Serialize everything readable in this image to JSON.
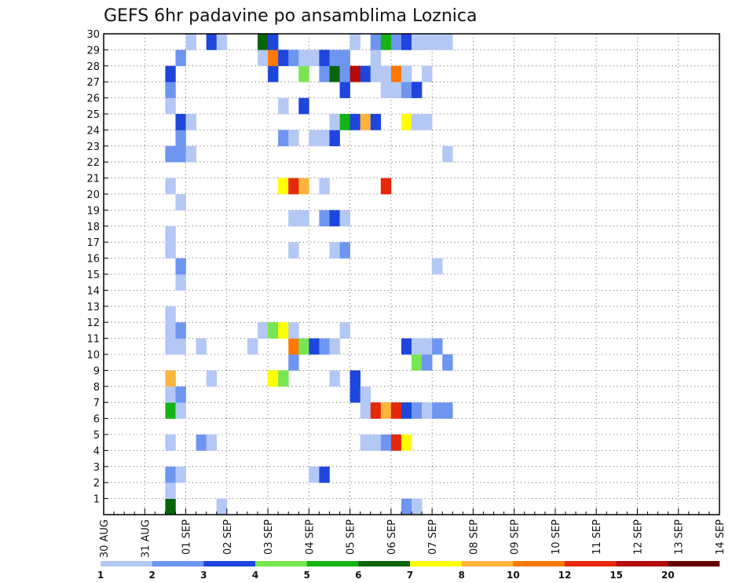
{
  "chart_data": {
    "type": "heatmap",
    "title": "GEFS 6hr padavine po ansamblima Loznica",
    "y_ticks": [
      "1",
      "2",
      "3",
      "4",
      "5",
      "6",
      "7",
      "8",
      "9",
      "10",
      "11",
      "12",
      "13",
      "14",
      "15",
      "16",
      "17",
      "18",
      "19",
      "20",
      "21",
      "22",
      "23",
      "24",
      "25",
      "26",
      "27",
      "28",
      "29",
      "30"
    ],
    "ylim": [
      0,
      30
    ],
    "x_ticks": [
      "30 AUG",
      "31 AUG",
      "01 SEP",
      "02 SEP",
      "03 SEP",
      "04 SEP",
      "05 SEP",
      "06 SEP",
      "07 SEP",
      "08 SEP",
      "09 SEP",
      "10 SEP",
      "11 SEP",
      "12 SEP",
      "13 SEP",
      "14 SEP"
    ],
    "x_steps_per_day": 4,
    "grid": true,
    "colorbar": {
      "colors": [
        "#b4c8f5",
        "#6e96f0",
        "#1e46dc",
        "#78e650",
        "#14b414",
        "#0a640a",
        "#ffff00",
        "#ffb43c",
        "#ff7800",
        "#e6280a",
        "#b40a0a",
        "#640000"
      ],
      "labels": [
        "1",
        "2",
        "3",
        "4",
        "5",
        "6",
        "7",
        "8",
        "10",
        "12",
        "15",
        "20"
      ]
    },
    "cells": [
      [
        6,
        0,
        "#0a640a"
      ],
      [
        11,
        0,
        "#b4c8f5"
      ],
      [
        29,
        0,
        "#6e96f0"
      ],
      [
        30,
        0,
        "#b4c8f5"
      ],
      [
        6,
        1,
        "#b4c8f5"
      ],
      [
        6,
        2,
        "#6e96f0"
      ],
      [
        7,
        2,
        "#b4c8f5"
      ],
      [
        20,
        2,
        "#b4c8f5"
      ],
      [
        21,
        2,
        "#1e46dc"
      ],
      [
        6,
        4,
        "#b4c8f5"
      ],
      [
        9,
        4,
        "#6e96f0"
      ],
      [
        10,
        4,
        "#b4c8f5"
      ],
      [
        25,
        4,
        "#b4c8f5"
      ],
      [
        26,
        4,
        "#b4c8f5"
      ],
      [
        27,
        4,
        "#6e96f0"
      ],
      [
        28,
        4,
        "#e6280a"
      ],
      [
        29,
        4,
        "#ffff00"
      ],
      [
        6,
        6,
        "#14b414"
      ],
      [
        7,
        6,
        "#b4c8f5"
      ],
      [
        25,
        6,
        "#b4c8f5"
      ],
      [
        26,
        6,
        "#e6280a"
      ],
      [
        27,
        6,
        "#ffb43c"
      ],
      [
        28,
        6,
        "#e6280a"
      ],
      [
        29,
        6,
        "#1e46dc"
      ],
      [
        30,
        6,
        "#6e96f0"
      ],
      [
        31,
        6,
        "#b4c8f5"
      ],
      [
        32,
        6,
        "#6e96f0"
      ],
      [
        33,
        6,
        "#6e96f0"
      ],
      [
        6,
        7,
        "#b4c8f5"
      ],
      [
        7,
        7,
        "#6e96f0"
      ],
      [
        24,
        7,
        "#1e46dc"
      ],
      [
        25,
        7,
        "#b4c8f5"
      ],
      [
        6,
        8,
        "#ffb43c"
      ],
      [
        10,
        8,
        "#b4c8f5"
      ],
      [
        16,
        8,
        "#ffff00"
      ],
      [
        17,
        8,
        "#78e650"
      ],
      [
        22,
        8,
        "#b4c8f5"
      ],
      [
        24,
        8,
        "#1e46dc"
      ],
      [
        18,
        9,
        "#6e96f0"
      ],
      [
        30,
        9,
        "#78e650"
      ],
      [
        31,
        9,
        "#6e96f0"
      ],
      [
        33,
        9,
        "#6e96f0"
      ],
      [
        6,
        10,
        "#b4c8f5"
      ],
      [
        7,
        10,
        "#b4c8f5"
      ],
      [
        9,
        10,
        "#b4c8f5"
      ],
      [
        14,
        10,
        "#b4c8f5"
      ],
      [
        18,
        10,
        "#ff7800"
      ],
      [
        19,
        10,
        "#78e650"
      ],
      [
        20,
        10,
        "#1e46dc"
      ],
      [
        21,
        10,
        "#6e96f0"
      ],
      [
        22,
        10,
        "#b4c8f5"
      ],
      [
        29,
        10,
        "#1e46dc"
      ],
      [
        30,
        10,
        "#b4c8f5"
      ],
      [
        31,
        10,
        "#b4c8f5"
      ],
      [
        32,
        10,
        "#6e96f0"
      ],
      [
        6,
        11,
        "#b4c8f5"
      ],
      [
        7,
        11,
        "#6e96f0"
      ],
      [
        15,
        11,
        "#b4c8f5"
      ],
      [
        16,
        11,
        "#78e650"
      ],
      [
        17,
        11,
        "#ffff00"
      ],
      [
        18,
        11,
        "#b4c8f5"
      ],
      [
        23,
        11,
        "#b4c8f5"
      ],
      [
        6,
        12,
        "#b4c8f5"
      ],
      [
        7,
        14,
        "#b4c8f5"
      ],
      [
        7,
        15,
        "#6e96f0"
      ],
      [
        32,
        15,
        "#b4c8f5"
      ],
      [
        6,
        16,
        "#b4c8f5"
      ],
      [
        18,
        16,
        "#b4c8f5"
      ],
      [
        22,
        16,
        "#b4c8f5"
      ],
      [
        23,
        16,
        "#6e96f0"
      ],
      [
        6,
        17,
        "#b4c8f5"
      ],
      [
        18,
        18,
        "#b4c8f5"
      ],
      [
        19,
        18,
        "#b4c8f5"
      ],
      [
        21,
        18,
        "#6e96f0"
      ],
      [
        22,
        18,
        "#1e46dc"
      ],
      [
        23,
        18,
        "#b4c8f5"
      ],
      [
        7,
        19,
        "#b4c8f5"
      ],
      [
        6,
        20,
        "#b4c8f5"
      ],
      [
        17,
        20,
        "#ffff00"
      ],
      [
        18,
        20,
        "#e6280a"
      ],
      [
        19,
        20,
        "#ffb43c"
      ],
      [
        21,
        20,
        "#b4c8f5"
      ],
      [
        27,
        20,
        "#e6280a"
      ],
      [
        6,
        22,
        "#6e96f0"
      ],
      [
        7,
        22,
        "#6e96f0"
      ],
      [
        8,
        22,
        "#b4c8f5"
      ],
      [
        33,
        22,
        "#b4c8f5"
      ],
      [
        7,
        23,
        "#6e96f0"
      ],
      [
        17,
        23,
        "#6e96f0"
      ],
      [
        18,
        23,
        "#b4c8f5"
      ],
      [
        20,
        23,
        "#b4c8f5"
      ],
      [
        21,
        23,
        "#b4c8f5"
      ],
      [
        22,
        23,
        "#1e46dc"
      ],
      [
        7,
        24,
        "#1e46dc"
      ],
      [
        8,
        24,
        "#b4c8f5"
      ],
      [
        22,
        24,
        "#b4c8f5"
      ],
      [
        23,
        24,
        "#14b414"
      ],
      [
        24,
        24,
        "#1e46dc"
      ],
      [
        25,
        24,
        "#ffb43c"
      ],
      [
        26,
        24,
        "#1e46dc"
      ],
      [
        29,
        24,
        "#ffff00"
      ],
      [
        30,
        24,
        "#b4c8f5"
      ],
      [
        31,
        24,
        "#b4c8f5"
      ],
      [
        6,
        25,
        "#b4c8f5"
      ],
      [
        17,
        25,
        "#b4c8f5"
      ],
      [
        19,
        25,
        "#1e46dc"
      ],
      [
        6,
        26,
        "#6e96f0"
      ],
      [
        23,
        26,
        "#1e46dc"
      ],
      [
        27,
        26,
        "#b4c8f5"
      ],
      [
        28,
        26,
        "#b4c8f5"
      ],
      [
        29,
        26,
        "#6e96f0"
      ],
      [
        30,
        26,
        "#1e46dc"
      ],
      [
        6,
        27,
        "#1e46dc"
      ],
      [
        16,
        27,
        "#1e46dc"
      ],
      [
        19,
        27,
        "#78e650"
      ],
      [
        21,
        27,
        "#6e96f0"
      ],
      [
        22,
        27,
        "#0a640a"
      ],
      [
        23,
        27,
        "#6e96f0"
      ],
      [
        24,
        27,
        "#b40a0a"
      ],
      [
        25,
        27,
        "#1e46dc"
      ],
      [
        26,
        27,
        "#b4c8f5"
      ],
      [
        27,
        27,
        "#b4c8f5"
      ],
      [
        28,
        27,
        "#ff7800"
      ],
      [
        29,
        27,
        "#b4c8f5"
      ],
      [
        31,
        27,
        "#b4c8f5"
      ],
      [
        7,
        28,
        "#6e96f0"
      ],
      [
        15,
        28,
        "#b4c8f5"
      ],
      [
        16,
        28,
        "#ff7800"
      ],
      [
        17,
        28,
        "#1e46dc"
      ],
      [
        18,
        28,
        "#6e96f0"
      ],
      [
        19,
        28,
        "#b4c8f5"
      ],
      [
        20,
        28,
        "#b4c8f5"
      ],
      [
        21,
        28,
        "#1e46dc"
      ],
      [
        22,
        28,
        "#6e96f0"
      ],
      [
        23,
        28,
        "#6e96f0"
      ],
      [
        26,
        28,
        "#b4c8f5"
      ],
      [
        8,
        29,
        "#b4c8f5"
      ],
      [
        10,
        29,
        "#1e46dc"
      ],
      [
        11,
        29,
        "#b4c8f5"
      ],
      [
        15,
        29,
        "#0a640a"
      ],
      [
        16,
        29,
        "#1e46dc"
      ],
      [
        24,
        29,
        "#b4c8f5"
      ],
      [
        26,
        29,
        "#6e96f0"
      ],
      [
        27,
        29,
        "#14b414"
      ],
      [
        28,
        29,
        "#6e96f0"
      ],
      [
        29,
        29,
        "#1e46dc"
      ],
      [
        30,
        29,
        "#b4c8f5"
      ],
      [
        31,
        29,
        "#b4c8f5"
      ],
      [
        32,
        29,
        "#b4c8f5"
      ],
      [
        33,
        29,
        "#b4c8f5"
      ]
    ]
  }
}
